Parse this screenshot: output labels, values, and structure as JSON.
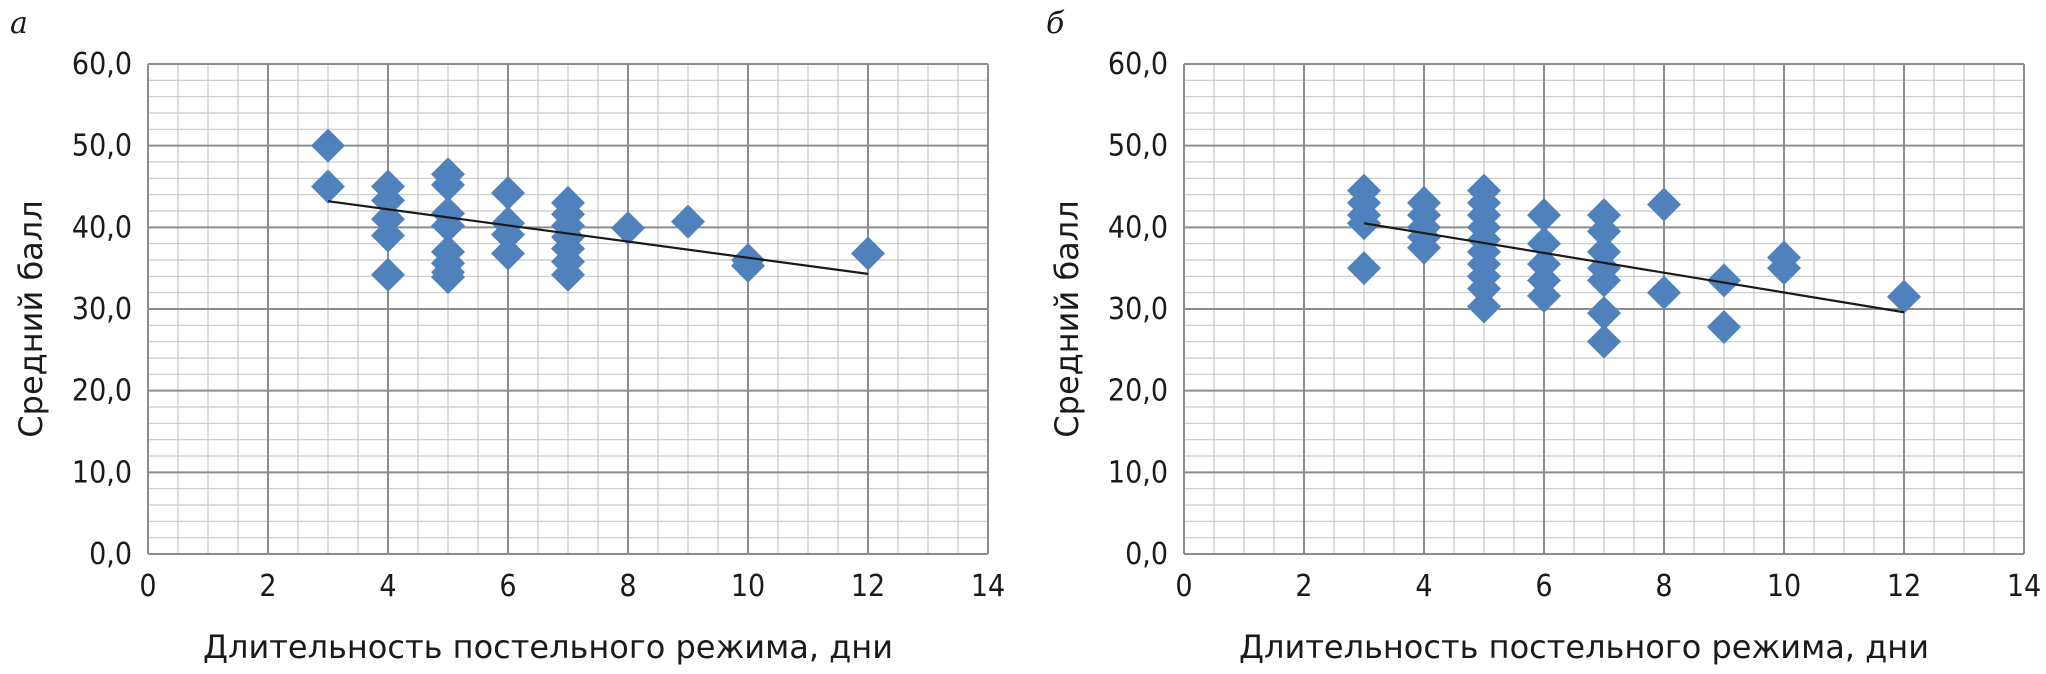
{
  "panels": [
    {
      "letter": "а",
      "chart_data": {
        "type": "scatter",
        "xlabel": "Длительность постельного режима, дни",
        "ylabel": "Средний балл",
        "xlim": [
          0,
          14
        ],
        "ylim": [
          0,
          60
        ],
        "x_ticks": [
          "0",
          "2",
          "4",
          "6",
          "8",
          "10",
          "12",
          "14"
        ],
        "y_ticks": [
          "0,0",
          "10,0",
          "20,0",
          "30,0",
          "40,0",
          "50,0",
          "60,0"
        ],
        "grid": true,
        "marker": "diamond",
        "marker_color": "#4F81BD",
        "trendline": {
          "x": [
            3,
            12
          ],
          "y": [
            43.2,
            34.3
          ]
        },
        "points": [
          {
            "x": 3,
            "y": 50.0
          },
          {
            "x": 3,
            "y": 45.0
          },
          {
            "x": 4,
            "y": 45.0
          },
          {
            "x": 4,
            "y": 43.3
          },
          {
            "x": 4,
            "y": 41.0
          },
          {
            "x": 4,
            "y": 39.0
          },
          {
            "x": 4,
            "y": 34.2
          },
          {
            "x": 5,
            "y": 46.5
          },
          {
            "x": 5,
            "y": 45.2
          },
          {
            "x": 5,
            "y": 41.7
          },
          {
            "x": 5,
            "y": 40.2
          },
          {
            "x": 5,
            "y": 37.0
          },
          {
            "x": 5,
            "y": 35.6
          },
          {
            "x": 5,
            "y": 34.5
          },
          {
            "x": 5,
            "y": 33.9
          },
          {
            "x": 6,
            "y": 44.2
          },
          {
            "x": 6,
            "y": 40.5
          },
          {
            "x": 6,
            "y": 39.1
          },
          {
            "x": 6,
            "y": 36.8
          },
          {
            "x": 7,
            "y": 43.0
          },
          {
            "x": 7,
            "y": 41.6
          },
          {
            "x": 7,
            "y": 40.2
          },
          {
            "x": 7,
            "y": 38.8
          },
          {
            "x": 7,
            "y": 37.4
          },
          {
            "x": 7,
            "y": 35.8
          },
          {
            "x": 7,
            "y": 34.2
          },
          {
            "x": 8,
            "y": 39.9
          },
          {
            "x": 9,
            "y": 40.7
          },
          {
            "x": 10,
            "y": 36.0
          },
          {
            "x": 10,
            "y": 35.3
          },
          {
            "x": 12,
            "y": 36.8
          }
        ]
      }
    },
    {
      "letter": "б",
      "chart_data": {
        "type": "scatter",
        "xlabel": "Длительность постельного режима, дни",
        "ylabel": "Средний балл",
        "xlim": [
          0,
          14
        ],
        "ylim": [
          0,
          60
        ],
        "x_ticks": [
          "0",
          "2",
          "4",
          "6",
          "8",
          "10",
          "12",
          "14"
        ],
        "y_ticks": [
          "0,0",
          "10,0",
          "20,0",
          "30,0",
          "40,0",
          "50,0",
          "60,0"
        ],
        "grid": true,
        "marker": "diamond",
        "marker_color": "#4F81BD",
        "trendline": {
          "x": [
            3,
            12
          ],
          "y": [
            40.5,
            29.6
          ]
        },
        "points": [
          {
            "x": 3,
            "y": 44.5
          },
          {
            "x": 3,
            "y": 43.0
          },
          {
            "x": 3,
            "y": 41.5
          },
          {
            "x": 3,
            "y": 40.5
          },
          {
            "x": 3,
            "y": 35.0
          },
          {
            "x": 4,
            "y": 43.0
          },
          {
            "x": 4,
            "y": 41.5
          },
          {
            "x": 4,
            "y": 40.0
          },
          {
            "x": 4,
            "y": 38.8
          },
          {
            "x": 4,
            "y": 37.5
          },
          {
            "x": 5,
            "y": 44.5
          },
          {
            "x": 5,
            "y": 43.0
          },
          {
            "x": 5,
            "y": 41.5
          },
          {
            "x": 5,
            "y": 40.0
          },
          {
            "x": 5,
            "y": 38.5
          },
          {
            "x": 5,
            "y": 37.0
          },
          {
            "x": 5,
            "y": 35.5
          },
          {
            "x": 5,
            "y": 34.0
          },
          {
            "x": 5,
            "y": 32.5
          },
          {
            "x": 5,
            "y": 30.3
          },
          {
            "x": 6,
            "y": 41.5
          },
          {
            "x": 6,
            "y": 38.0
          },
          {
            "x": 6,
            "y": 35.5
          },
          {
            "x": 6,
            "y": 33.5
          },
          {
            "x": 6,
            "y": 31.6
          },
          {
            "x": 7,
            "y": 41.5
          },
          {
            "x": 7,
            "y": 39.5
          },
          {
            "x": 7,
            "y": 37.0
          },
          {
            "x": 7,
            "y": 35.0
          },
          {
            "x": 7,
            "y": 33.5
          },
          {
            "x": 7,
            "y": 29.5
          },
          {
            "x": 7,
            "y": 26.0
          },
          {
            "x": 8,
            "y": 42.8
          },
          {
            "x": 8,
            "y": 32.0
          },
          {
            "x": 9,
            "y": 33.5
          },
          {
            "x": 9,
            "y": 27.8
          },
          {
            "x": 10,
            "y": 36.3
          },
          {
            "x": 10,
            "y": 35.0
          },
          {
            "x": 12,
            "y": 31.5
          }
        ]
      }
    }
  ]
}
